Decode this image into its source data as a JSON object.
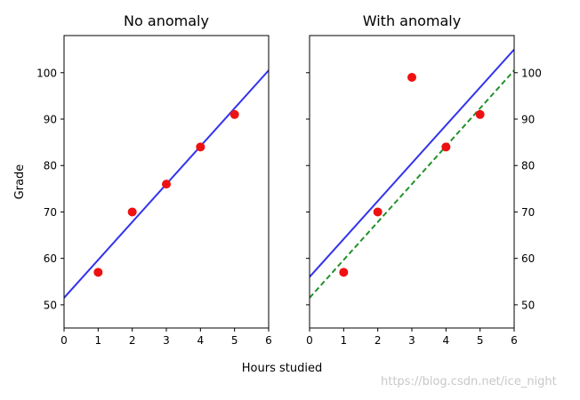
{
  "chart_data": [
    {
      "type": "scatter",
      "title": "No anomaly",
      "xlabel": "Hours studied",
      "ylabel": "Grade",
      "xlim": [
        0,
        6
      ],
      "ylim": [
        45,
        108
      ],
      "xticks": [
        0,
        1,
        2,
        3,
        4,
        5,
        6
      ],
      "yticks": [
        50,
        60,
        70,
        80,
        90,
        100
      ],
      "yaxis_side": "left",
      "grid": false,
      "points": [
        {
          "x": 1,
          "y": 57
        },
        {
          "x": 2,
          "y": 70
        },
        {
          "x": 3,
          "y": 76
        },
        {
          "x": 4,
          "y": 84
        },
        {
          "x": 5,
          "y": 91
        }
      ],
      "lines": [
        {
          "style": "solid",
          "color": "#3333ee",
          "x": [
            0,
            6
          ],
          "y": [
            51.5,
            100.5
          ]
        }
      ],
      "point_color": "#ee1111"
    },
    {
      "type": "scatter",
      "title": "With anomaly",
      "xlim": [
        0,
        6
      ],
      "ylim": [
        45,
        108
      ],
      "xticks": [
        0,
        1,
        2,
        3,
        4,
        5,
        6
      ],
      "yticks": [
        50,
        60,
        70,
        80,
        90,
        100
      ],
      "yaxis_side": "right",
      "grid": false,
      "points": [
        {
          "x": 1,
          "y": 57
        },
        {
          "x": 2,
          "y": 70
        },
        {
          "x": 3,
          "y": 99
        },
        {
          "x": 4,
          "y": 84
        },
        {
          "x": 5,
          "y": 91
        }
      ],
      "lines": [
        {
          "style": "solid",
          "color": "#3333ee",
          "x": [
            0,
            6
          ],
          "y": [
            56,
            105
          ]
        },
        {
          "style": "dashed",
          "color": "#22922a",
          "x": [
            0,
            6
          ],
          "y": [
            51.5,
            100.5
          ]
        }
      ],
      "point_color": "#ee1111"
    }
  ],
  "watermark": "https://blog.csdn.net/ice_night"
}
